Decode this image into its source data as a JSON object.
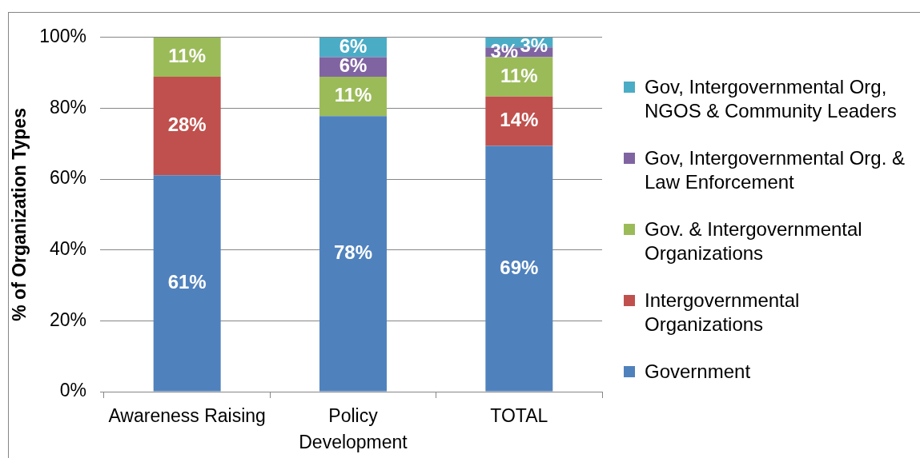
{
  "chart_data": {
    "type": "bar",
    "stacked": true,
    "categories": [
      "Awareness Raising",
      "Policy Development",
      "TOTAL"
    ],
    "ylabel": "% of Organization Types",
    "ylim": [
      0,
      100
    ],
    "yticks": [
      {
        "value": 0,
        "label": "0%"
      },
      {
        "value": 20,
        "label": "20%"
      },
      {
        "value": 40,
        "label": "40%"
      },
      {
        "value": 60,
        "label": "60%"
      },
      {
        "value": 80,
        "label": "80%"
      },
      {
        "value": 100,
        "label": "100%"
      }
    ],
    "grid": "y",
    "legend": "right",
    "series": [
      {
        "name": "Government",
        "color": "#4f81bd",
        "values": [
          61.1,
          77.8,
          69.4
        ],
        "value_labels": [
          "61%",
          "78%",
          "69%"
        ]
      },
      {
        "name": "Intergovernmental Organizations",
        "color": "#c0504d",
        "values": [
          27.8,
          null,
          13.9
        ],
        "value_labels": [
          "28%",
          null,
          "14%"
        ]
      },
      {
        "name": "Gov. & Intergovernmental Organizations",
        "color": "#9bbb59",
        "values": [
          11.1,
          11.1,
          11.1
        ],
        "value_labels": [
          "11%",
          "11%",
          "11%"
        ]
      },
      {
        "name": "Gov, Intergovernmental Org. & Law Enforcement",
        "color": "#8064a2",
        "values": [
          null,
          5.5,
          2.8
        ],
        "value_labels": [
          null,
          "6%",
          "3%"
        ]
      },
      {
        "name": "Gov, Intergovernmental Org, NGOS & Community Leaders",
        "color": "#4bacc6",
        "values": [
          null,
          5.6,
          2.8
        ],
        "value_labels": [
          null,
          "6%",
          "3%"
        ]
      }
    ]
  }
}
